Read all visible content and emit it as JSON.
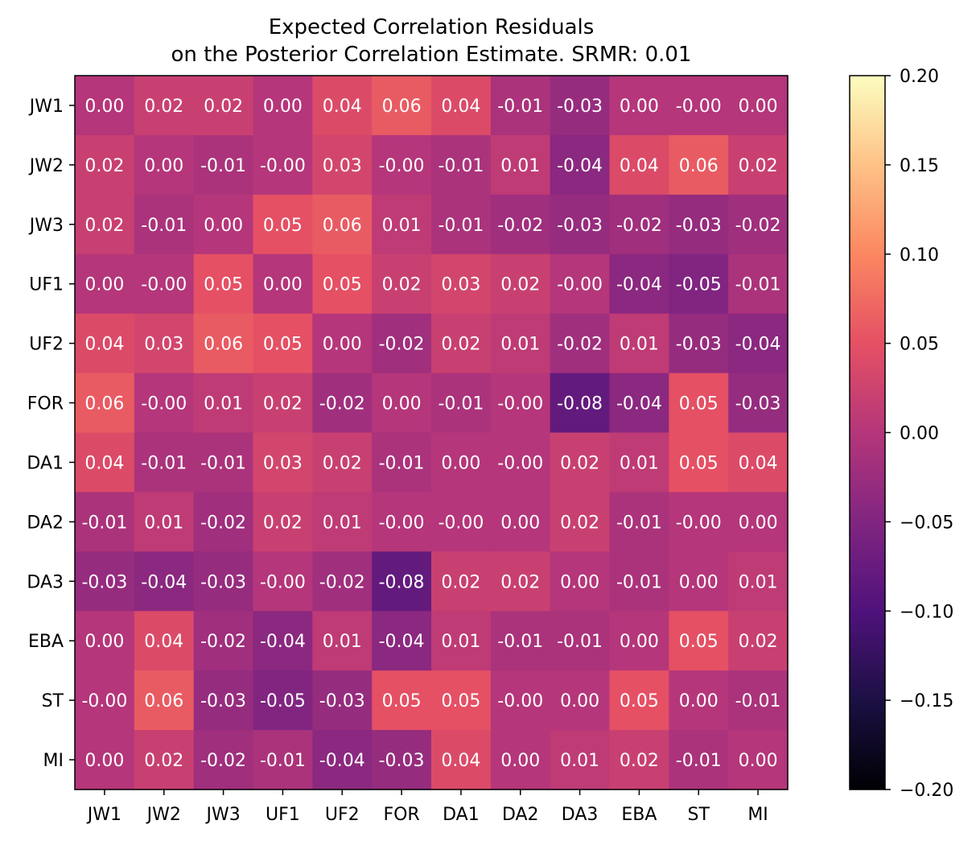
{
  "chart_data": {
    "type": "heatmap",
    "title": "Expected Correlation Residuals\non the Posterior Correlation Estimate. SRMR: 0.01",
    "x_labels": [
      "JW1",
      "JW2",
      "JW3",
      "UF1",
      "UF2",
      "FOR",
      "DA1",
      "DA2",
      "DA3",
      "EBA",
      "ST",
      "MI"
    ],
    "y_labels": [
      "JW1",
      "JW2",
      "JW3",
      "UF1",
      "UF2",
      "FOR",
      "DA1",
      "DA2",
      "DA3",
      "EBA",
      "ST",
      "MI"
    ],
    "values": [
      [
        0.0,
        0.02,
        0.02,
        0.0,
        0.04,
        0.06,
        0.04,
        -0.01,
        -0.03,
        0.0,
        -0.0,
        0.0
      ],
      [
        0.02,
        0.0,
        -0.01,
        -0.0,
        0.03,
        -0.0,
        -0.01,
        0.01,
        -0.04,
        0.04,
        0.06,
        0.02
      ],
      [
        0.02,
        -0.01,
        0.0,
        0.05,
        0.06,
        0.01,
        -0.01,
        -0.02,
        -0.03,
        -0.02,
        -0.03,
        -0.02
      ],
      [
        0.0,
        -0.0,
        0.05,
        0.0,
        0.05,
        0.02,
        0.03,
        0.02,
        -0.0,
        -0.04,
        -0.05,
        -0.01
      ],
      [
        0.04,
        0.03,
        0.06,
        0.05,
        0.0,
        -0.02,
        0.02,
        0.01,
        -0.02,
        0.01,
        -0.03,
        -0.04
      ],
      [
        0.06,
        -0.0,
        0.01,
        0.02,
        -0.02,
        0.0,
        -0.01,
        -0.0,
        -0.08,
        -0.04,
        0.05,
        -0.03
      ],
      [
        0.04,
        -0.01,
        -0.01,
        0.03,
        0.02,
        -0.01,
        0.0,
        -0.0,
        0.02,
        0.01,
        0.05,
        0.04
      ],
      [
        -0.01,
        0.01,
        -0.02,
        0.02,
        0.01,
        -0.0,
        -0.0,
        0.0,
        0.02,
        -0.01,
        -0.0,
        0.0
      ],
      [
        -0.03,
        -0.04,
        -0.03,
        -0.0,
        -0.02,
        -0.08,
        0.02,
        0.02,
        0.0,
        -0.01,
        0.0,
        0.01
      ],
      [
        0.0,
        0.04,
        -0.02,
        -0.04,
        0.01,
        -0.04,
        0.01,
        -0.01,
        -0.01,
        0.0,
        0.05,
        0.02
      ],
      [
        -0.0,
        0.06,
        -0.03,
        -0.05,
        -0.03,
        0.05,
        0.05,
        -0.0,
        0.0,
        0.05,
        0.0,
        -0.01
      ],
      [
        0.0,
        0.02,
        -0.02,
        -0.01,
        -0.04,
        -0.03,
        0.04,
        0.0,
        0.01,
        0.02,
        -0.01,
        0.0
      ]
    ],
    "value_labels": [
      [
        "0.00",
        "0.02",
        "0.02",
        "0.00",
        "0.04",
        "0.06",
        "0.04",
        "-0.01",
        "-0.03",
        "0.00",
        "-0.00",
        "0.00"
      ],
      [
        "0.02",
        "0.00",
        "-0.01",
        "-0.00",
        "0.03",
        "-0.00",
        "-0.01",
        "0.01",
        "-0.04",
        "0.04",
        "0.06",
        "0.02"
      ],
      [
        "0.02",
        "-0.01",
        "0.00",
        "0.05",
        "0.06",
        "0.01",
        "-0.01",
        "-0.02",
        "-0.03",
        "-0.02",
        "-0.03",
        "-0.02"
      ],
      [
        "0.00",
        "-0.00",
        "0.05",
        "0.00",
        "0.05",
        "0.02",
        "0.03",
        "0.02",
        "-0.00",
        "-0.04",
        "-0.05",
        "-0.01"
      ],
      [
        "0.04",
        "0.03",
        "0.06",
        "0.05",
        "0.00",
        "-0.02",
        "0.02",
        "0.01",
        "-0.02",
        "0.01",
        "-0.03",
        "-0.04"
      ],
      [
        "0.06",
        "-0.00",
        "0.01",
        "0.02",
        "-0.02",
        "0.00",
        "-0.01",
        "-0.00",
        "-0.08",
        "-0.04",
        "0.05",
        "-0.03"
      ],
      [
        "0.04",
        "-0.01",
        "-0.01",
        "0.03",
        "0.02",
        "-0.01",
        "0.00",
        "-0.00",
        "0.02",
        "0.01",
        "0.05",
        "0.04"
      ],
      [
        "-0.01",
        "0.01",
        "-0.02",
        "0.02",
        "0.01",
        "-0.00",
        "-0.00",
        "0.00",
        "0.02",
        "-0.01",
        "-0.00",
        "0.00"
      ],
      [
        "-0.03",
        "-0.04",
        "-0.03",
        "-0.00",
        "-0.02",
        "-0.08",
        "0.02",
        "0.02",
        "0.00",
        "-0.01",
        "0.00",
        "0.01"
      ],
      [
        "0.00",
        "0.04",
        "-0.02",
        "-0.04",
        "0.01",
        "-0.04",
        "0.01",
        "-0.01",
        "-0.01",
        "0.00",
        "0.05",
        "0.02"
      ],
      [
        "-0.00",
        "0.06",
        "-0.03",
        "-0.05",
        "-0.03",
        "0.05",
        "0.05",
        "-0.00",
        "0.00",
        "0.05",
        "0.00",
        "-0.01"
      ],
      [
        "0.00",
        "0.02",
        "-0.02",
        "-0.01",
        "-0.04",
        "-0.03",
        "0.04",
        "0.00",
        "0.01",
        "0.02",
        "-0.01",
        "0.00"
      ]
    ],
    "colorbar": {
      "colormap": "magma",
      "vmin": -0.2,
      "vmax": 0.2,
      "ticks": [
        0.2,
        0.15,
        0.1,
        0.05,
        0.0,
        -0.05,
        -0.1,
        -0.15,
        -0.2
      ],
      "tick_labels": [
        "0.20",
        "0.15",
        "0.10",
        "0.05",
        "0.00",
        "−0.05",
        "−0.10",
        "−0.15",
        "−0.20"
      ]
    },
    "xlabel": "",
    "ylabel": "",
    "grid": false
  }
}
